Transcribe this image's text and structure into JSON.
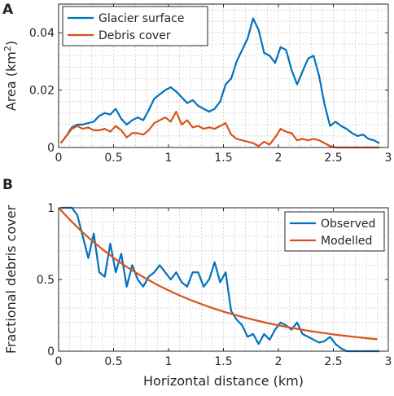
{
  "chart_data": [
    {
      "panel": "A",
      "type": "line",
      "xlabel": "",
      "ylabel": "Area (km²)",
      "xlim": [
        0,
        3
      ],
      "ylim": [
        0,
        0.05
      ],
      "xticks": [
        0,
        0.5,
        1,
        1.5,
        2,
        2.5,
        3
      ],
      "xtick_labels": [
        "0",
        "0.5",
        "1",
        "1.5",
        "2",
        "2.5",
        "3"
      ],
      "yticks": [
        0,
        0.02,
        0.04
      ],
      "ytick_labels": [
        "0",
        "0.02",
        "0.04"
      ],
      "grid": true,
      "legend_position": "top-left",
      "series": [
        {
          "name": "Glacier surface",
          "color": "#0072bd",
          "x": [
            0.02,
            0.07,
            0.12,
            0.17,
            0.22,
            0.27,
            0.32,
            0.37,
            0.42,
            0.47,
            0.52,
            0.57,
            0.62,
            0.67,
            0.72,
            0.77,
            0.82,
            0.87,
            0.92,
            0.97,
            1.02,
            1.07,
            1.12,
            1.17,
            1.22,
            1.27,
            1.32,
            1.37,
            1.42,
            1.47,
            1.52,
            1.57,
            1.62,
            1.67,
            1.72,
            1.77,
            1.82,
            1.87,
            1.92,
            1.97,
            2.02,
            2.07,
            2.12,
            2.17,
            2.22,
            2.27,
            2.32,
            2.37,
            2.42,
            2.47,
            2.52,
            2.57,
            2.62,
            2.67,
            2.72,
            2.77,
            2.82,
            2.87,
            2.92
          ],
          "y": [
            0.0015,
            0.004,
            0.007,
            0.008,
            0.008,
            0.0085,
            0.009,
            0.011,
            0.012,
            0.0115,
            0.0135,
            0.01,
            0.008,
            0.0095,
            0.0105,
            0.0095,
            0.013,
            0.017,
            0.0185,
            0.02,
            0.021,
            0.0195,
            0.0175,
            0.0155,
            0.0165,
            0.0145,
            0.0135,
            0.0125,
            0.0135,
            0.016,
            0.022,
            0.024,
            0.03,
            0.034,
            0.038,
            0.045,
            0.041,
            0.033,
            0.032,
            0.0295,
            0.035,
            0.034,
            0.027,
            0.022,
            0.0265,
            0.031,
            0.032,
            0.025,
            0.015,
            0.0075,
            0.009,
            0.0075,
            0.0065,
            0.005,
            0.004,
            0.0045,
            0.003,
            0.0025,
            0.0015
          ]
        },
        {
          "name": "Debris cover",
          "color": "#d95319",
          "x": [
            0.02,
            0.07,
            0.12,
            0.17,
            0.22,
            0.27,
            0.32,
            0.37,
            0.42,
            0.47,
            0.52,
            0.57,
            0.62,
            0.67,
            0.72,
            0.77,
            0.82,
            0.87,
            0.92,
            0.97,
            1.02,
            1.07,
            1.12,
            1.17,
            1.22,
            1.27,
            1.32,
            1.37,
            1.42,
            1.47,
            1.52,
            1.57,
            1.62,
            1.67,
            1.72,
            1.77,
            1.82,
            1.87,
            1.92,
            1.97,
            2.02,
            2.07,
            2.12,
            2.17,
            2.22,
            2.27,
            2.32,
            2.37,
            2.42,
            2.47,
            2.52,
            2.57,
            2.62,
            2.67,
            2.72,
            2.77,
            2.82,
            2.87,
            2.92
          ],
          "y": [
            0.0015,
            0.004,
            0.0065,
            0.0075,
            0.0065,
            0.007,
            0.006,
            0.006,
            0.0065,
            0.0055,
            0.0075,
            0.006,
            0.0035,
            0.005,
            0.005,
            0.0045,
            0.006,
            0.0085,
            0.0095,
            0.0105,
            0.009,
            0.0125,
            0.008,
            0.0095,
            0.007,
            0.0075,
            0.0065,
            0.007,
            0.0065,
            0.0075,
            0.0085,
            0.0045,
            0.003,
            0.0025,
            0.002,
            0.0015,
            0.0005,
            0.002,
            0.001,
            0.0035,
            0.0065,
            0.0055,
            0.005,
            0.0025,
            0.003,
            0.0025,
            0.003,
            0.0025,
            0.0015,
            0.0005,
            0,
            0,
            0,
            0,
            0,
            0,
            0,
            0,
            0
          ]
        }
      ]
    },
    {
      "panel": "B",
      "type": "line",
      "xlabel": "Horizontal distance (km)",
      "ylabel": "Fractional debris cover",
      "xlim": [
        0,
        3
      ],
      "ylim": [
        0,
        1
      ],
      "xticks": [
        0,
        0.5,
        1,
        1.5,
        2,
        2.5,
        3
      ],
      "xtick_labels": [
        "0",
        "0.5",
        "1",
        "1.5",
        "2",
        "2.5",
        "3"
      ],
      "yticks": [
        0,
        0.5,
        1
      ],
      "ytick_labels": [
        "0",
        "0.5",
        "1"
      ],
      "grid": true,
      "legend_position": "top-right",
      "series": [
        {
          "name": "Observed",
          "color": "#0072bd",
          "x": [
            0.02,
            0.07,
            0.12,
            0.17,
            0.22,
            0.27,
            0.32,
            0.37,
            0.42,
            0.47,
            0.52,
            0.57,
            0.62,
            0.67,
            0.72,
            0.77,
            0.82,
            0.87,
            0.92,
            0.97,
            1.02,
            1.07,
            1.12,
            1.17,
            1.22,
            1.27,
            1.32,
            1.37,
            1.42,
            1.47,
            1.52,
            1.57,
            1.62,
            1.67,
            1.72,
            1.77,
            1.82,
            1.87,
            1.92,
            1.97,
            2.02,
            2.07,
            2.12,
            2.17,
            2.22,
            2.27,
            2.32,
            2.37,
            2.42,
            2.47,
            2.52,
            2.57,
            2.62,
            2.67,
            2.72,
            2.77,
            2.82,
            2.87,
            2.92
          ],
          "y": [
            1,
            1,
            1,
            0.95,
            0.8,
            0.65,
            0.82,
            0.55,
            0.52,
            0.75,
            0.55,
            0.68,
            0.45,
            0.6,
            0.5,
            0.45,
            0.52,
            0.55,
            0.6,
            0.55,
            0.5,
            0.55,
            0.48,
            0.45,
            0.55,
            0.55,
            0.45,
            0.5,
            0.62,
            0.48,
            0.55,
            0.28,
            0.22,
            0.18,
            0.1,
            0.12,
            0.05,
            0.12,
            0.08,
            0.15,
            0.2,
            0.18,
            0.15,
            0.2,
            0.12,
            0.1,
            0.08,
            0.06,
            0.07,
            0.1,
            0.05,
            0.02,
            0,
            0,
            0,
            0,
            0,
            0,
            0
          ]
        },
        {
          "name": "Modelled",
          "color": "#d95319",
          "x": [
            0,
            0.1,
            0.2,
            0.3,
            0.4,
            0.5,
            0.6,
            0.7,
            0.8,
            0.9,
            1.0,
            1.1,
            1.2,
            1.3,
            1.4,
            1.5,
            1.6,
            1.7,
            1.8,
            1.9,
            2.0,
            2.1,
            2.2,
            2.3,
            2.4,
            2.5,
            2.6,
            2.7,
            2.8,
            2.9
          ],
          "y": [
            1,
            0.918,
            0.842,
            0.773,
            0.71,
            0.651,
            0.598,
            0.549,
            0.504,
            0.462,
            0.424,
            0.389,
            0.357,
            0.328,
            0.301,
            0.276,
            0.254,
            0.233,
            0.214,
            0.196,
            0.18,
            0.165,
            0.152,
            0.139,
            0.128,
            0.117,
            0.108,
            0.099,
            0.091,
            0.083
          ]
        }
      ]
    }
  ]
}
